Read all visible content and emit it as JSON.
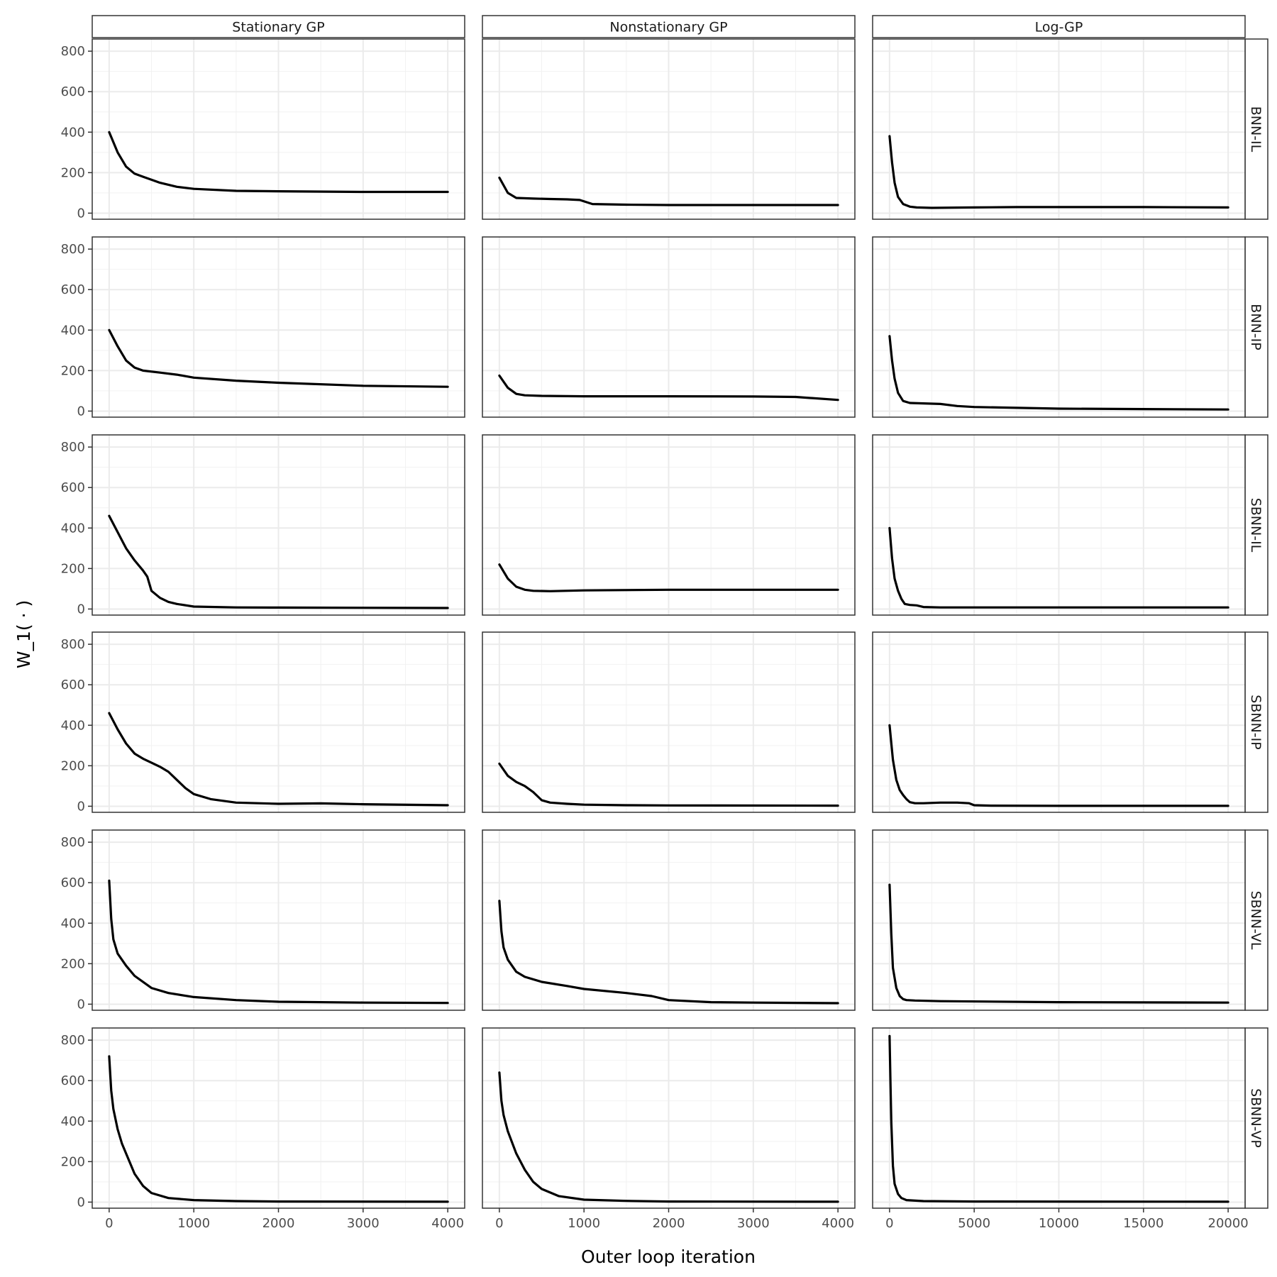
{
  "chart_data": {
    "type": "line",
    "facet_layout": "grid",
    "xlabel": "Outer loop iteration",
    "ylabel": "W_1( · )",
    "ylim": [
      -30,
      860
    ],
    "y_ticks": [
      0,
      200,
      400,
      600,
      800
    ],
    "grid": true,
    "line_color": "#000000",
    "columns": [
      {
        "label": "Stationary GP",
        "xlim": [
          -200,
          4200
        ],
        "x_ticks": [
          0,
          1000,
          2000,
          3000,
          4000
        ]
      },
      {
        "label": "Nonstationary GP",
        "xlim": [
          -200,
          4200
        ],
        "x_ticks": [
          0,
          1000,
          2000,
          3000,
          4000
        ]
      },
      {
        "label": "Log-GP",
        "xlim": [
          -1000,
          21000
        ],
        "x_ticks": [
          0,
          5000,
          10000,
          15000,
          20000
        ]
      }
    ],
    "rows": [
      {
        "label": "BNN-IL",
        "series": [
          {
            "x": [
              0,
              100,
              200,
              300,
              400,
              600,
              800,
              1000,
              1500,
              2000,
              3000,
              4000
            ],
            "y": [
              400,
              300,
              230,
              195,
              180,
              150,
              130,
              120,
              110,
              108,
              105,
              105
            ]
          },
          {
            "x": [
              0,
              100,
              200,
              400,
              600,
              800,
              950,
              1100,
              1500,
              2000,
              3000,
              4000
            ],
            "y": [
              175,
              100,
              75,
              72,
              70,
              68,
              65,
              45,
              42,
              40,
              40,
              40
            ]
          },
          {
            "x": [
              0,
              150,
              300,
              500,
              800,
              1200,
              1600,
              2500,
              5000,
              7500,
              10000,
              15000,
              20000
            ],
            "y": [
              380,
              250,
              150,
              80,
              45,
              32,
              28,
              26,
              28,
              30,
              30,
              30,
              28
            ]
          }
        ]
      },
      {
        "label": "BNN-IP",
        "series": [
          {
            "x": [
              0,
              100,
              200,
              300,
              400,
              600,
              800,
              1000,
              1500,
              2000,
              3000,
              4000
            ],
            "y": [
              400,
              320,
              250,
              215,
              200,
              190,
              180,
              165,
              150,
              140,
              125,
              120
            ]
          },
          {
            "x": [
              0,
              100,
              200,
              300,
              500,
              1000,
              2000,
              3000,
              3500,
              4000
            ],
            "y": [
              175,
              115,
              85,
              78,
              75,
              73,
              73,
              72,
              70,
              55
            ]
          },
          {
            "x": [
              0,
              150,
              300,
              500,
              800,
              1200,
              2000,
              3000,
              4000,
              5000,
              10000,
              15000,
              20000
            ],
            "y": [
              370,
              250,
              160,
              90,
              50,
              40,
              38,
              35,
              25,
              20,
              12,
              10,
              8
            ]
          }
        ]
      },
      {
        "label": "SBNN-IL",
        "series": [
          {
            "x": [
              0,
              100,
              200,
              300,
              400,
              450,
              500,
              600,
              700,
              800,
              1000,
              1500,
              2000,
              4000
            ],
            "y": [
              460,
              380,
              300,
              240,
              190,
              160,
              90,
              55,
              35,
              25,
              12,
              8,
              7,
              5
            ]
          },
          {
            "x": [
              0,
              100,
              200,
              300,
              400,
              600,
              1000,
              2000,
              3000,
              4000
            ],
            "y": [
              220,
              150,
              110,
              95,
              90,
              88,
              92,
              95,
              95,
              95
            ]
          },
          {
            "x": [
              0,
              150,
              300,
              500,
              700,
              900,
              1200,
              1600,
              2000,
              3000,
              10000,
              20000
            ],
            "y": [
              400,
              250,
              150,
              90,
              50,
              25,
              20,
              18,
              10,
              8,
              8,
              8
            ]
          }
        ]
      },
      {
        "label": "SBNN-IP",
        "series": [
          {
            "x": [
              0,
              100,
              200,
              300,
              400,
              500,
              600,
              700,
              800,
              900,
              1000,
              1200,
              1500,
              2000,
              2500,
              3000,
              4000
            ],
            "y": [
              460,
              380,
              310,
              260,
              235,
              215,
              195,
              170,
              130,
              90,
              60,
              35,
              18,
              12,
              14,
              10,
              5
            ]
          },
          {
            "x": [
              0,
              100,
              200,
              300,
              400,
              500,
              600,
              800,
              1000,
              1500,
              2000,
              4000
            ],
            "y": [
              210,
              150,
              120,
              100,
              70,
              30,
              18,
              12,
              8,
              5,
              4,
              3
            ]
          },
          {
            "x": [
              0,
              200,
              400,
              600,
              800,
              1000,
              1200,
              1500,
              2000,
              3000,
              4000,
              4700,
              5000,
              6000,
              10000,
              20000
            ],
            "y": [
              400,
              230,
              130,
              80,
              55,
              35,
              20,
              15,
              15,
              18,
              18,
              15,
              5,
              3,
              2,
              2
            ]
          }
        ]
      },
      {
        "label": "SBNN-VL",
        "series": [
          {
            "x": [
              0,
              25,
              50,
              100,
              200,
              300,
              500,
              700,
              1000,
              1500,
              2000,
              3000,
              4000
            ],
            "y": [
              610,
              420,
              320,
              250,
              190,
              140,
              80,
              55,
              35,
              20,
              12,
              8,
              6
            ]
          },
          {
            "x": [
              0,
              25,
              50,
              100,
              200,
              300,
              500,
              800,
              1000,
              1500,
              1800,
              2000,
              2500,
              3000,
              4000
            ],
            "y": [
              510,
              360,
              280,
              220,
              160,
              135,
              110,
              90,
              75,
              55,
              40,
              20,
              10,
              8,
              5
            ]
          },
          {
            "x": [
              0,
              100,
              200,
              400,
              600,
              800,
              1000,
              1500,
              3000,
              10000,
              20000
            ],
            "y": [
              590,
              350,
              180,
              80,
              40,
              25,
              20,
              18,
              15,
              10,
              8
            ]
          }
        ]
      },
      {
        "label": "SBNN-VP",
        "series": [
          {
            "x": [
              0,
              25,
              50,
              100,
              150,
              200,
              300,
              400,
              500,
              700,
              1000,
              1500,
              2000,
              4000
            ],
            "y": [
              720,
              550,
              460,
              360,
              290,
              240,
              140,
              80,
              45,
              20,
              10,
              5,
              3,
              2
            ]
          },
          {
            "x": [
              0,
              25,
              50,
              100,
              200,
              300,
              400,
              500,
              700,
              1000,
              1500,
              2000,
              4000
            ],
            "y": [
              640,
              500,
              430,
              350,
              240,
              160,
              100,
              65,
              30,
              12,
              6,
              3,
              2
            ]
          },
          {
            "x": [
              0,
              50,
              100,
              200,
              300,
              500,
              700,
              1000,
              2000,
              5000,
              20000
            ],
            "y": [
              820,
              600,
              400,
              180,
              90,
              40,
              20,
              10,
              5,
              3,
              2
            ]
          }
        ]
      }
    ]
  }
}
